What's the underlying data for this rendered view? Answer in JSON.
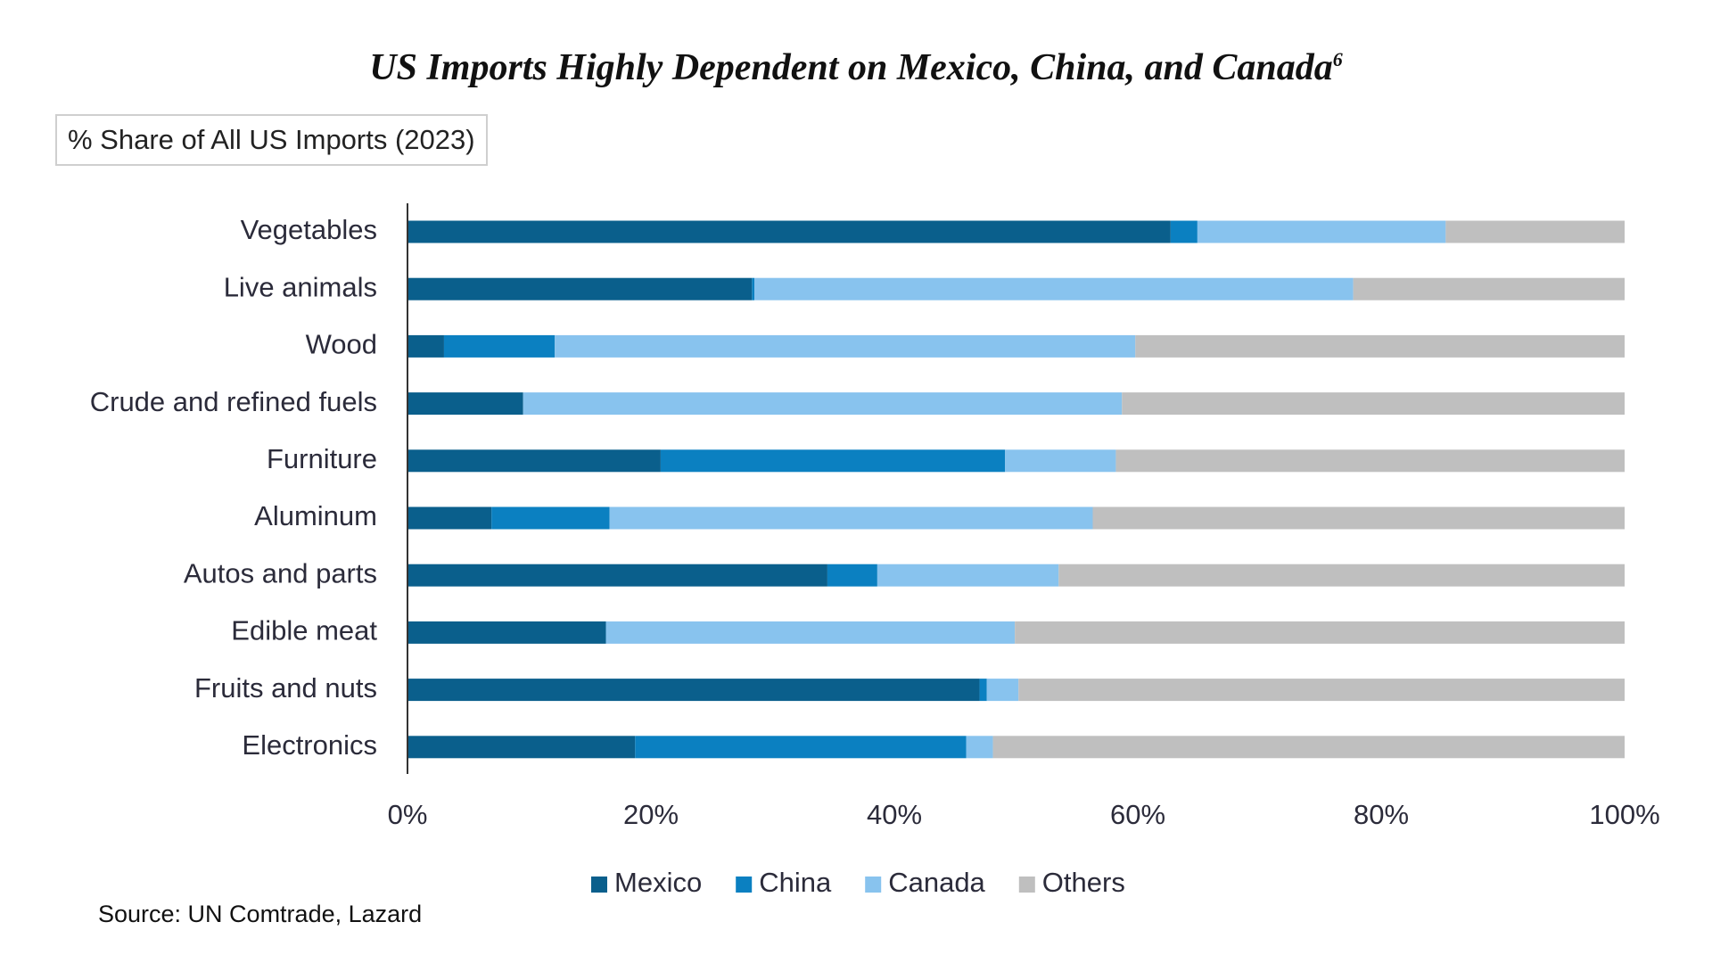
{
  "title": "US Imports Highly Dependent on Mexico, China, and Canada",
  "title_footnote": "6",
  "subtitle": "% Share of All US Imports (2023)",
  "source": "Source: UN Comtrade, Lazard",
  "chart_data": {
    "type": "bar",
    "orientation": "horizontal",
    "stacked": true,
    "categories": [
      "Vegetables",
      "Live animals",
      "Wood",
      "Crude and refined fuels",
      "Furniture",
      "Aluminum",
      "Autos and parts",
      "Edible meat",
      "Fruits and nuts",
      "Electronics"
    ],
    "series": [
      {
        "name": "Mexico",
        "color": "#0a5f8c",
        "values": [
          62.7,
          28.3,
          3.0,
          9.5,
          20.8,
          6.9,
          34.5,
          16.3,
          47.0,
          18.7
        ]
      },
      {
        "name": "China",
        "color": "#0b80c1",
        "values": [
          2.2,
          0.2,
          9.1,
          0.0,
          28.3,
          9.7,
          4.1,
          0.0,
          0.6,
          27.2
        ]
      },
      {
        "name": "Canada",
        "color": "#88c3ee",
        "values": [
          20.4,
          49.2,
          47.7,
          49.2,
          9.1,
          39.7,
          14.9,
          33.6,
          2.6,
          2.2
        ]
      },
      {
        "name": "Others",
        "color": "#bfbfbf",
        "values": [
          14.7,
          22.3,
          40.2,
          41.3,
          41.8,
          43.7,
          46.5,
          50.1,
          49.8,
          51.9
        ]
      }
    ],
    "x_ticks": [
      "0%",
      "20%",
      "40%",
      "60%",
      "80%",
      "100%"
    ],
    "xlim": [
      0,
      100
    ],
    "grid": false,
    "legend_position": "bottom"
  }
}
